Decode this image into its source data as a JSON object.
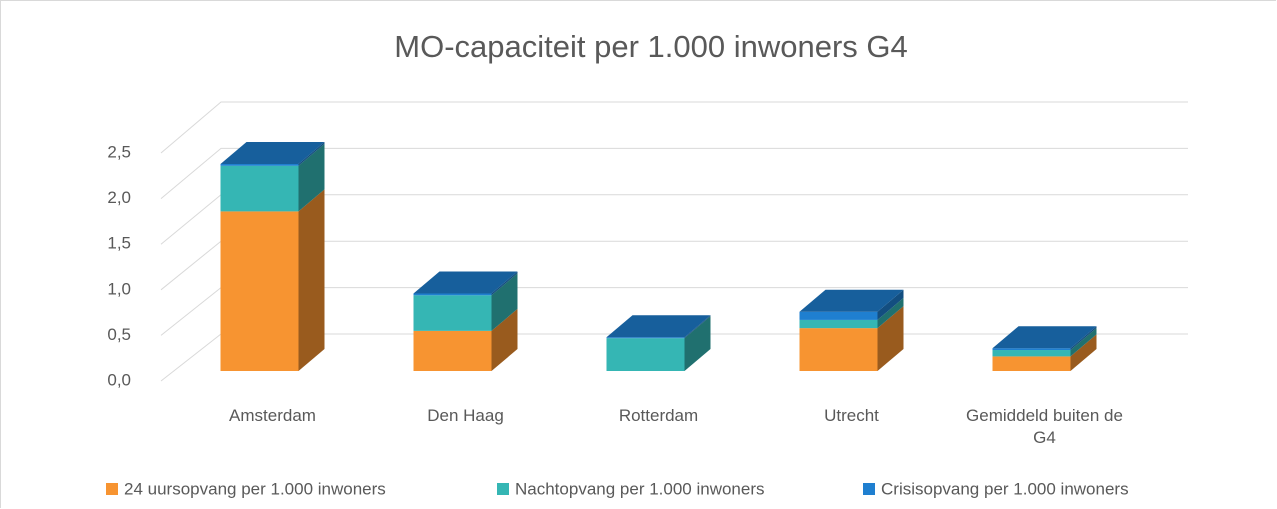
{
  "chart_data": {
    "type": "bar3d_stacked",
    "title": "MO-capaciteit per 1.000 inwoners G4",
    "categories": [
      "Amsterdam",
      "Den Haag",
      "Rotterdam",
      "Utrecht",
      "Gemiddeld buiten de G4"
    ],
    "series": [
      {
        "name": "24 uursopvang per 1.000 inwoners",
        "color": "#f79431",
        "values": [
          1.75,
          0.44,
          0,
          0.47,
          0.16
        ]
      },
      {
        "name": "Nachtopvang per 1.000 inwoners",
        "color": "#35b6b4",
        "values": [
          0.5,
          0.39,
          0.36,
          0.09,
          0.07
        ]
      },
      {
        "name": "Crisisopvang per 1.000 inwoners",
        "color": "#1f7fd0",
        "values": [
          0.02,
          0.02,
          0.01,
          0.09,
          0.02
        ]
      }
    ],
    "ylim": [
      0,
      2.5
    ],
    "yticks": [
      {
        "value": 0,
        "label": "0,0"
      },
      {
        "value": 0.5,
        "label": "0,5"
      },
      {
        "value": 1,
        "label": "1,0"
      },
      {
        "value": 1.5,
        "label": "1,5"
      },
      {
        "value": 2,
        "label": "2,0"
      },
      {
        "value": 2.5,
        "label": "2,5"
      }
    ],
    "grid": true
  }
}
